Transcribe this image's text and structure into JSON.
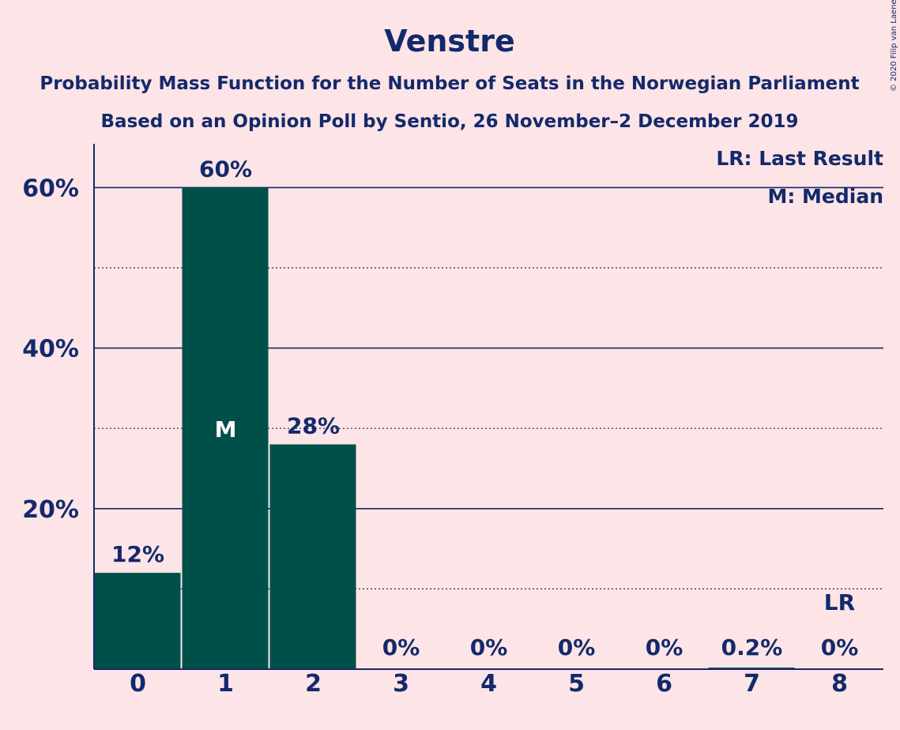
{
  "title": "Venstre",
  "subtitle_1": "Probability Mass Function for the Number of Seats in the Norwegian Parliament",
  "subtitle_2": "Based on an Opinion Poll by Sentio, 26 November–2 December 2019",
  "copyright": "© 2020 Filip van Laenen",
  "legend": {
    "last_result": "LR: Last Result",
    "median": "M: Median"
  },
  "colors": {
    "background": "#fde4e6",
    "bar": "#00504a",
    "text": "#13296b",
    "axis": "#13296b"
  },
  "chart_data": {
    "type": "bar",
    "categories": [
      "0",
      "1",
      "2",
      "3",
      "4",
      "5",
      "6",
      "7",
      "8"
    ],
    "values": [
      12,
      60,
      28,
      0,
      0,
      0,
      0,
      0.2,
      0
    ],
    "value_labels": [
      "12%",
      "60%",
      "28%",
      "0%",
      "0%",
      "0%",
      "0%",
      "0.2%",
      "0%"
    ],
    "ylim": [
      0,
      65
    ],
    "y_ticks": [
      {
        "value": 20,
        "label": "20%"
      },
      {
        "value": 40,
        "label": "40%"
      },
      {
        "value": 60,
        "label": "60%"
      }
    ],
    "y_minor_ticks": [
      10,
      30,
      50
    ],
    "grid": true,
    "median_category": "1",
    "median_marker": "M",
    "last_result_category": "8",
    "last_result_marker": "LR",
    "xlabel": "",
    "ylabel": ""
  }
}
